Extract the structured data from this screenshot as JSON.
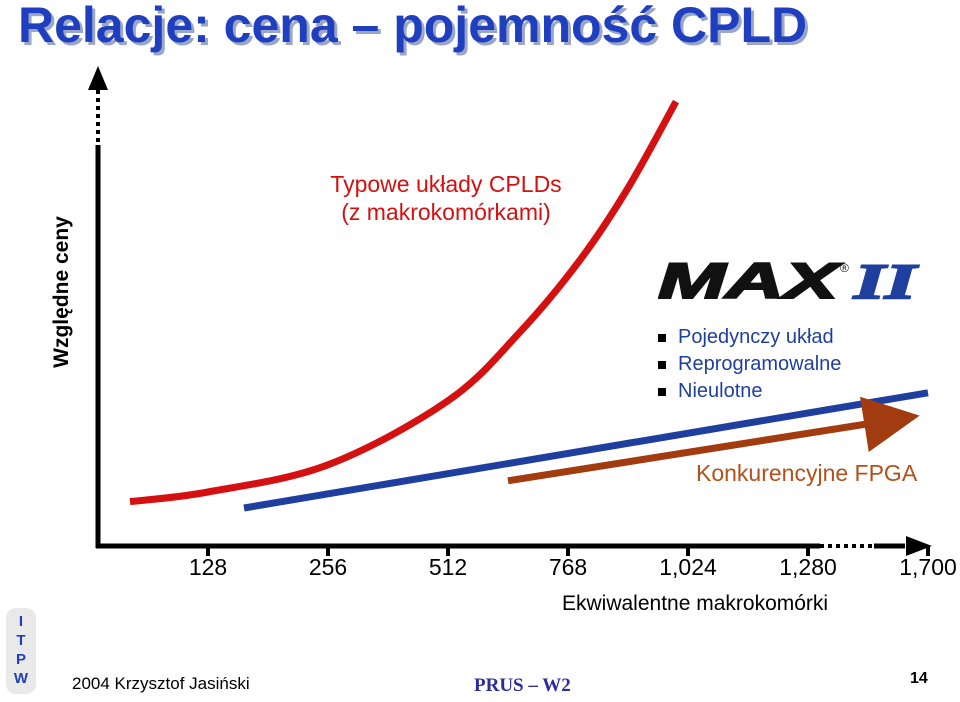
{
  "slide": {
    "title": "Relacje: cena – pojemność CPLD",
    "course": "PRUS – W2",
    "author_line": "2004  Krzysztof Jasiński",
    "page_number": "14",
    "side_tab": [
      "I",
      "T",
      "P",
      "W"
    ]
  },
  "chart_data": {
    "type": "line",
    "ylabel": "Względne ceny",
    "xlabel": "Ekwiwalentne makrokomórki",
    "x_tick_labels": [
      "128",
      "256",
      "512",
      "768",
      "1,024",
      "1,280",
      "1,700"
    ],
    "series": [
      {
        "name": "Typowe układy CPLDs (z makrokomórkami)",
        "color": "#d51010",
        "x_index": [
          -0.65,
          0,
          1,
          2,
          2.6,
          3.1,
          3.5,
          3.9
        ],
        "y_rel": [
          0.04,
          0.1,
          0.27,
          0.67,
          1.1,
          1.55,
          2.0,
          2.54
        ]
      },
      {
        "name": "MAX II",
        "color": "#1f3f9f",
        "x_index": [
          0.3,
          6.0
        ],
        "y_rel": [
          0.0,
          0.72
        ]
      },
      {
        "name": "Konkurencyjne FPGA",
        "color": "#a23c10",
        "x_index": [
          2.5,
          5.7
        ],
        "y_rel": [
          0.17,
          0.55
        ]
      }
    ],
    "annotations": {
      "cpld_label": [
        "Typowe układy CPLDs",
        "(z makrokomórkami)"
      ],
      "max2_logo": "MAX II",
      "max2_features": [
        "Pojedynczy układ",
        "Reprogramowalne",
        "Nieulotne"
      ],
      "fpga_label": "Konkurencyjne FPGA"
    },
    "grid": false
  },
  "colors": {
    "title": "#1f3fbf",
    "cpld": "#d51010",
    "max2": "#1f3f9f",
    "fpga": "#a23c10"
  }
}
